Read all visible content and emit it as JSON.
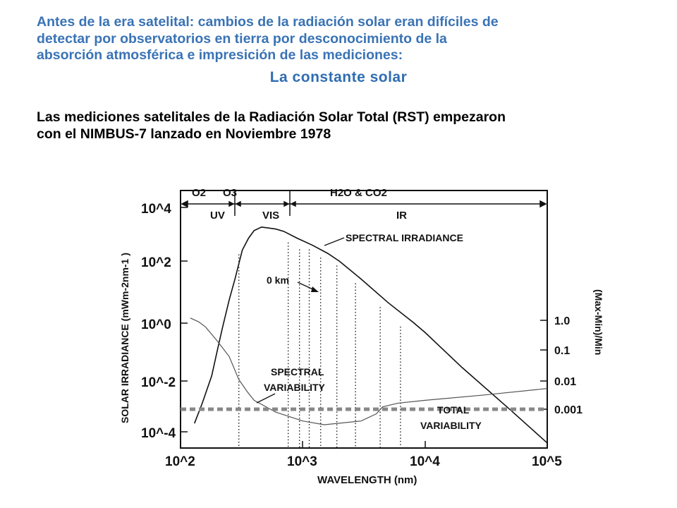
{
  "intro": {
    "line1": "Antes de la era satelital: cambios de la radiación solar  eran     difíciles  de",
    "line2": "detectar por observatorios en tierra  por desconocimiento de la",
    "line3": "absorción atmosférica e impresición  de las mediciones:"
  },
  "title": "La constante solar",
  "body": {
    "line1": "Las mediciones satelitales  de la Radiación Solar Total  (RST)  empezaron",
    "line2": "con el NIMBUS-7  lanzado en Noviembre 1978"
  },
  "colors": {
    "intro": "#3a73b5",
    "title": "#2f6db2",
    "body": "#000000"
  },
  "chart_data": {
    "type": "line",
    "x_scale": "log",
    "xlabel": "WAVELENGTH (nm)",
    "ylabel_left": "SOLAR IRRADIANCE (mWm-2nm-1 )",
    "ylabel_right": "(Max-Min)/Min",
    "xlim": [
      100,
      100000
    ],
    "x_ticks": [
      "10^2",
      "10^3",
      "10^4",
      "10^5"
    ],
    "y_left_ticks": [
      "10^4",
      "10^2",
      "10^0",
      "10^-2",
      "10^-4"
    ],
    "y_right_ticks": [
      "1.0",
      "0.1",
      "0.01",
      "0.001"
    ],
    "band_labels": {
      "uv": "UV",
      "vis": "VIS",
      "ir": "IR",
      "o2": "O2",
      "o3": "O3",
      "h2o_co2": "H2O  &  CO2"
    },
    "annotations": {
      "spectral_irradiance": "SPECTRAL IRRADIANCE",
      "zero_km": "0 km",
      "spectral_var_1": "SPECTRAL",
      "spectral_var_2": "VARIABILITY",
      "total_var_1": "TOTAL",
      "total_var_2": "VARIABILITY"
    },
    "series": [
      {
        "name": "SPECTRAL IRRADIANCE",
        "x": [
          130,
          150,
          180,
          200,
          220,
          250,
          280,
          320,
          360,
          400,
          460,
          500,
          600,
          700,
          900,
          1200,
          1600,
          2000,
          3000,
          5000,
          8000,
          10000,
          20000,
          50000,
          100000
        ],
        "y": [
          0.0002,
          0.001,
          0.01,
          0.08,
          0.5,
          5,
          30,
          300,
          800,
          1500,
          2000,
          1900,
          1700,
          1400,
          800,
          450,
          230,
          120,
          28,
          4,
          0.8,
          0.35,
          0.02,
          0.0006,
          4e-05
        ]
      },
      {
        "name": "SPECTRAL VARIABILITY",
        "x": [
          120,
          140,
          160,
          200,
          250,
          300,
          350,
          400,
          600,
          1000,
          1500,
          3000,
          4000,
          4500,
          6000,
          10000,
          30000,
          100000
        ],
        "y": [
          1.2,
          0.9,
          0.6,
          0.2,
          0.06,
          0.01,
          0.004,
          0.002,
          0.0008,
          0.0004,
          0.0003,
          0.0004,
          0.0007,
          0.0012,
          0.0016,
          0.002,
          0.003,
          0.005
        ]
      },
      {
        "name": "TOTAL VARIABILITY",
        "x": [
          100,
          100000
        ],
        "y": [
          0.001,
          0.001
        ]
      }
    ]
  }
}
